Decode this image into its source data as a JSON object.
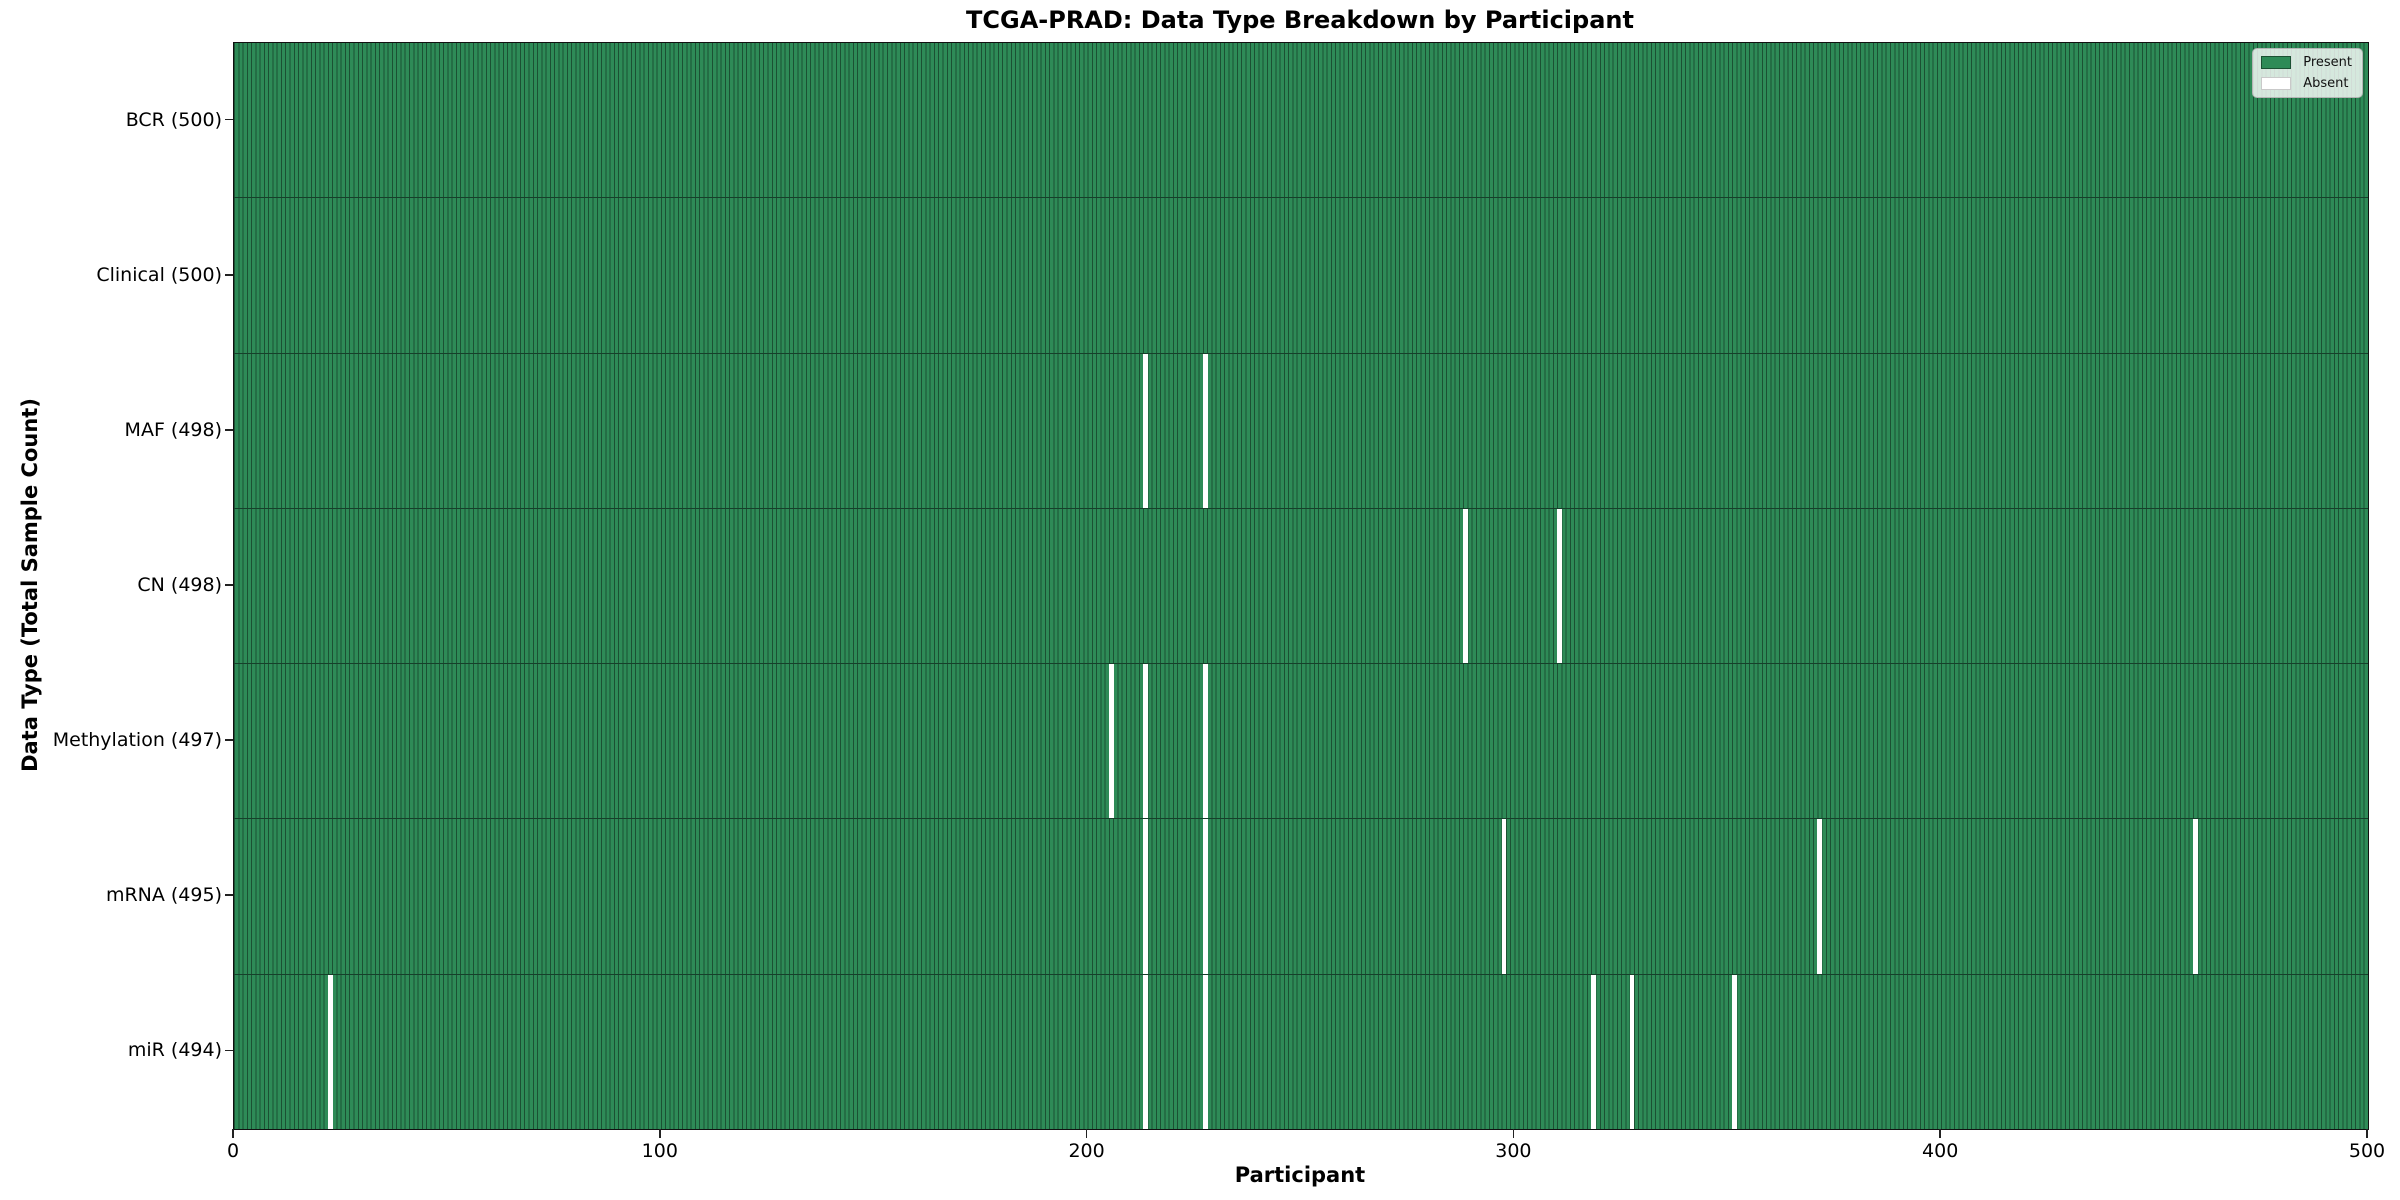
{
  "chart_data": {
    "type": "heatmap",
    "title": "TCGA-PRAD: Data Type Breakdown by Participant",
    "xlabel": "Participant",
    "ylabel": "Data Type (Total Sample Count)",
    "xlim": [
      0,
      500
    ],
    "x_ticks": [
      0,
      100,
      200,
      300,
      400,
      500
    ],
    "grid": false,
    "legend": {
      "position": "upper right",
      "entries": [
        {
          "label": "Present",
          "color": "#2e8b57"
        },
        {
          "label": "Absent",
          "color": "#ffffff"
        }
      ]
    },
    "rows": [
      {
        "label": "BCR (500)",
        "total": 500,
        "absent_participants": []
      },
      {
        "label": "Clinical (500)",
        "total": 500,
        "absent_participants": []
      },
      {
        "label": "MAF (498)",
        "total": 498,
        "absent_participants": [
          213,
          227
        ]
      },
      {
        "label": "CN (498)",
        "total": 498,
        "absent_participants": [
          288,
          310
        ]
      },
      {
        "label": "Methylation (497)",
        "total": 497,
        "absent_participants": [
          205,
          213,
          227
        ]
      },
      {
        "label": "mRNA (495)",
        "total": 495,
        "absent_participants": [
          213,
          227,
          297,
          371,
          459
        ]
      },
      {
        "label": "miR (494)",
        "total": 494,
        "absent_participants": [
          22,
          213,
          227,
          318,
          327,
          351
        ]
      }
    ],
    "colors": {
      "present": "#2e8b57",
      "absent": "#ffffff",
      "bar_edge": "#1b5133",
      "row_separator": "#16402a"
    }
  }
}
